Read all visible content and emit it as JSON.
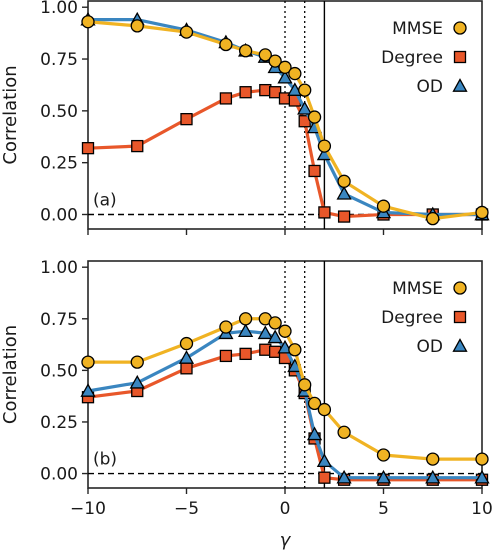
{
  "chart_data": [
    {
      "type": "line",
      "panel_label": "(a)",
      "ylabel": "Correlation",
      "xlabel": "",
      "xlim": [
        -10,
        10
      ],
      "ylim": [
        -0.07,
        1.03
      ],
      "yticks": [
        0.0,
        0.25,
        0.5,
        0.75,
        1.0
      ],
      "ytick_labels": [
        "0.00",
        "0.25",
        "0.50",
        "0.75",
        "1.00"
      ],
      "xticks": [
        -10,
        -5,
        0,
        5,
        10
      ],
      "xtick_labels": [],
      "grid": false,
      "legend_position": "top-right",
      "reference_lines": {
        "horizontal_dashed_y": 0,
        "vertical_dotted_x": [
          0,
          1
        ],
        "vertical_solid_x": [
          2
        ]
      },
      "series": [
        {
          "name": "MMSE",
          "color": "#F0B323",
          "marker": "circle",
          "x": [
            -10,
            -7.5,
            -5,
            -3,
            -2,
            -1,
            -0.5,
            0,
            0.5,
            1,
            1.5,
            2,
            3,
            5,
            7.5,
            10
          ],
          "y": [
            0.93,
            0.91,
            0.88,
            0.82,
            0.79,
            0.77,
            0.74,
            0.71,
            0.68,
            0.6,
            0.47,
            0.33,
            0.16,
            0.04,
            -0.02,
            0.01
          ]
        },
        {
          "name": "Degree",
          "color": "#E8572A",
          "marker": "square",
          "x": [
            -10,
            -7.5,
            -5,
            -3,
            -2,
            -1,
            -0.5,
            0,
            0.5,
            1,
            1.5,
            2,
            3,
            5,
            7.5,
            10
          ],
          "y": [
            0.32,
            0.33,
            0.46,
            0.56,
            0.59,
            0.6,
            0.59,
            0.56,
            0.55,
            0.45,
            0.21,
            0.01,
            -0.01,
            0.0,
            0.0,
            0.0
          ]
        },
        {
          "name": "OD",
          "color": "#3A86C0",
          "marker": "triangle",
          "x": [
            -10,
            -7.5,
            -5,
            -3,
            -2,
            -1,
            -0.5,
            0,
            0.5,
            1,
            1.5,
            2,
            3,
            5,
            7.5,
            10
          ],
          "y": [
            0.94,
            0.94,
            0.89,
            0.83,
            0.79,
            0.76,
            0.71,
            0.66,
            0.6,
            0.51,
            0.42,
            0.29,
            0.1,
            0.01,
            0.0,
            0.0
          ]
        }
      ]
    },
    {
      "type": "line",
      "panel_label": "(b)",
      "ylabel": "Correlation",
      "xlabel": "γ",
      "xlim": [
        -10,
        10
      ],
      "ylim": [
        -0.07,
        1.03
      ],
      "yticks": [
        0.0,
        0.25,
        0.5,
        0.75,
        1.0
      ],
      "ytick_labels": [
        "0.00",
        "0.25",
        "0.50",
        "0.75",
        "1.00"
      ],
      "xticks": [
        -10,
        -5,
        0,
        5,
        10
      ],
      "xtick_labels": [
        "−10",
        "−5",
        "0",
        "5",
        "10"
      ],
      "grid": false,
      "legend_position": "top-right",
      "reference_lines": {
        "horizontal_dashed_y": 0,
        "vertical_dotted_x": [
          0,
          1
        ],
        "vertical_solid_x": [
          2
        ]
      },
      "series": [
        {
          "name": "MMSE",
          "color": "#F0B323",
          "marker": "circle",
          "x": [
            -10,
            -7.5,
            -5,
            -3,
            -2,
            -1,
            -0.5,
            0,
            0.5,
            1,
            1.5,
            2,
            3,
            5,
            7.5,
            10
          ],
          "y": [
            0.54,
            0.54,
            0.63,
            0.71,
            0.75,
            0.75,
            0.73,
            0.69,
            0.6,
            0.43,
            0.34,
            0.31,
            0.2,
            0.09,
            0.07,
            0.07
          ]
        },
        {
          "name": "Degree",
          "color": "#E8572A",
          "marker": "square",
          "x": [
            -10,
            -7.5,
            -5,
            -3,
            -2,
            -1,
            -0.5,
            0,
            0.5,
            1,
            1.5,
            2,
            3,
            5,
            7.5,
            10
          ],
          "y": [
            0.37,
            0.4,
            0.51,
            0.57,
            0.58,
            0.6,
            0.59,
            0.56,
            0.5,
            0.39,
            0.17,
            -0.02,
            -0.03,
            -0.03,
            -0.03,
            -0.03
          ]
        },
        {
          "name": "OD",
          "color": "#3A86C0",
          "marker": "triangle",
          "x": [
            -10,
            -7.5,
            -5,
            -3,
            -2,
            -1,
            -0.5,
            0,
            0.5,
            1,
            1.5,
            2,
            3,
            5,
            7.5,
            10
          ],
          "y": [
            0.4,
            0.44,
            0.56,
            0.68,
            0.69,
            0.68,
            0.66,
            0.61,
            0.52,
            0.4,
            0.19,
            0.06,
            -0.02,
            -0.02,
            -0.02,
            -0.02
          ]
        }
      ]
    }
  ]
}
